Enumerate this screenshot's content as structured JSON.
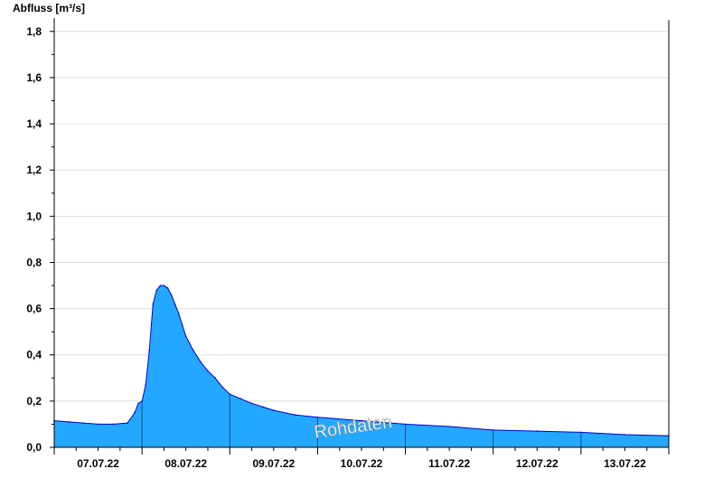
{
  "chart_data": {
    "type": "area",
    "ylabel": "Abfluss [m³/s]",
    "xlabel": "",
    "title": "",
    "watermark": "Rohdaten",
    "ylim": [
      0,
      1.85
    ],
    "xlim": [
      0,
      7
    ],
    "yticks": [
      {
        "value": 0.0,
        "label": "0,0"
      },
      {
        "value": 0.2,
        "label": "0,2"
      },
      {
        "value": 0.4,
        "label": "0,4"
      },
      {
        "value": 0.6,
        "label": "0,6"
      },
      {
        "value": 0.8,
        "label": "0,8"
      },
      {
        "value": 1.0,
        "label": "1,0"
      },
      {
        "value": 1.2,
        "label": "1,2"
      },
      {
        "value": 1.4,
        "label": "1,4"
      },
      {
        "value": 1.6,
        "label": "1,6"
      },
      {
        "value": 1.8,
        "label": "1,8"
      }
    ],
    "xticks": [
      "07.07.22",
      "08.07.22",
      "09.07.22",
      "10.07.22",
      "11.07.22",
      "12.07.22",
      "13.07.22"
    ],
    "grid": true,
    "colors": {
      "fill": "#24a8ff",
      "line": "#0000cc",
      "grid": "#dddddd",
      "axis": "#000000"
    },
    "series": [
      {
        "x": [
          "2022-07-07 00:00",
          "2022-07-07 04:00",
          "2022-07-07 08:00",
          "2022-07-07 12:00",
          "2022-07-07 16:00",
          "2022-07-07 20:00",
          "2022-07-07 22:00",
          "2022-07-07 23:00",
          "2022-07-08 00:00",
          "2022-07-08 01:00",
          "2022-07-08 02:00",
          "2022-07-08 03:00",
          "2022-07-08 04:00",
          "2022-07-08 05:00",
          "2022-07-08 06:00",
          "2022-07-08 07:00",
          "2022-07-08 08:00",
          "2022-07-08 09:00",
          "2022-07-08 10:00",
          "2022-07-08 11:00",
          "2022-07-08 12:00",
          "2022-07-08 14:00",
          "2022-07-08 16:00",
          "2022-07-08 18:00",
          "2022-07-08 20:00",
          "2022-07-08 22:00",
          "2022-07-09 00:00",
          "2022-07-09 03:00",
          "2022-07-09 06:00",
          "2022-07-09 09:00",
          "2022-07-09 12:00",
          "2022-07-09 18:00",
          "2022-07-10 00:00",
          "2022-07-10 12:00",
          "2022-07-11 00:00",
          "2022-07-11 12:00",
          "2022-07-12 00:00",
          "2022-07-12 12:00",
          "2022-07-13 00:00",
          "2022-07-13 12:00",
          "2022-07-13 23:59"
        ],
        "values": [
          0.115,
          0.11,
          0.105,
          0.1,
          0.1,
          0.105,
          0.15,
          0.19,
          0.2,
          0.27,
          0.42,
          0.62,
          0.68,
          0.7,
          0.7,
          0.69,
          0.66,
          0.62,
          0.58,
          0.53,
          0.48,
          0.42,
          0.37,
          0.33,
          0.3,
          0.26,
          0.23,
          0.21,
          0.19,
          0.175,
          0.16,
          0.14,
          0.13,
          0.115,
          0.1,
          0.09,
          0.075,
          0.07,
          0.065,
          0.055,
          0.05
        ]
      }
    ]
  }
}
